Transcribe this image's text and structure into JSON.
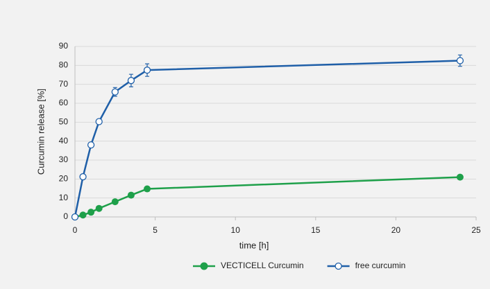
{
  "chart_data": {
    "type": "line",
    "x_label": "time [h]",
    "y_label": "Curcumin release [%]",
    "xlim": [
      0,
      25
    ],
    "xticks": [
      0,
      5,
      10,
      15,
      20,
      25
    ],
    "ylim": [
      0,
      90
    ],
    "yticks": [
      0,
      10,
      20,
      30,
      40,
      50,
      60,
      70,
      80,
      90
    ],
    "grid": true,
    "legend": "bottom",
    "series": [
      {
        "name": "VECTICELL Curcumin",
        "color": "#1ea04a",
        "marker": "filled",
        "x": [
          0,
          0.5,
          1,
          1.5,
          2.5,
          3.5,
          4.5,
          24
        ],
        "values": [
          0,
          1,
          2.5,
          4.5,
          8,
          11.5,
          14.8,
          21
        ]
      },
      {
        "name": "free curcumin",
        "color": "#1f5fa8",
        "marker": "open",
        "x": [
          0,
          0.5,
          1,
          1.5,
          2.5,
          3.5,
          4.5,
          24
        ],
        "values": [
          0,
          21.2,
          38,
          50.3,
          66,
          72,
          77.5,
          82.5
        ],
        "errors": [
          0,
          1,
          1,
          1,
          2.3,
          3.3,
          3.3,
          3
        ]
      }
    ]
  }
}
